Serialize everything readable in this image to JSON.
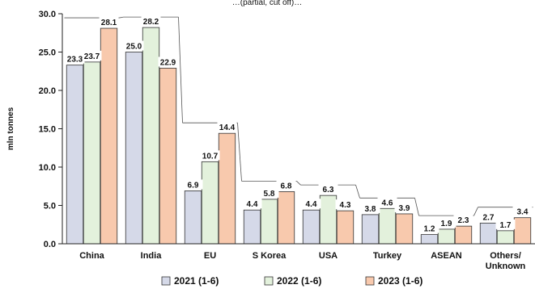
{
  "chart_data": {
    "type": "bar",
    "title": "…(partial, cut off)…",
    "ylabel": "mln tonnes",
    "xlabel": "",
    "ylim": [
      0,
      30
    ],
    "yticks": [
      "0.0",
      "5.0",
      "10.0",
      "15.0",
      "20.0",
      "25.0",
      "30.0"
    ],
    "categories": [
      "China",
      "India",
      "EU",
      "S Korea",
      "USA",
      "Turkey",
      "ASEAN",
      "Others/\nUnknown"
    ],
    "series": [
      {
        "name": "2021 (1-6)",
        "color": "#d5d9e8",
        "values": [
          23.3,
          25.0,
          6.9,
          4.4,
          4.4,
          3.8,
          1.2,
          2.7
        ]
      },
      {
        "name": "2022 (1-6)",
        "color": "#e3f1dc",
        "values": [
          23.7,
          28.2,
          10.7,
          5.8,
          6.3,
          4.6,
          1.9,
          1.7
        ]
      },
      {
        "name": "2023 (1-6)",
        "color": "#f8c9ad",
        "values": [
          28.1,
          22.9,
          14.4,
          6.8,
          4.3,
          3.9,
          2.3,
          3.4
        ]
      }
    ],
    "data_labels": [
      [
        "23.3",
        "25.0",
        "6.9",
        "4.4",
        "4.4",
        "3.8",
        "1.2",
        "2.7"
      ],
      [
        "23.7",
        "28.2",
        "10.7",
        "5.8",
        "6.3",
        "4.6",
        "1.9",
        "1.7"
      ],
      [
        "28.1",
        "22.9",
        "14.4",
        "6.8",
        "4.3",
        "3.9",
        "2.3",
        "3.4"
      ]
    ],
    "grid": false,
    "legend_position": "bottom"
  }
}
